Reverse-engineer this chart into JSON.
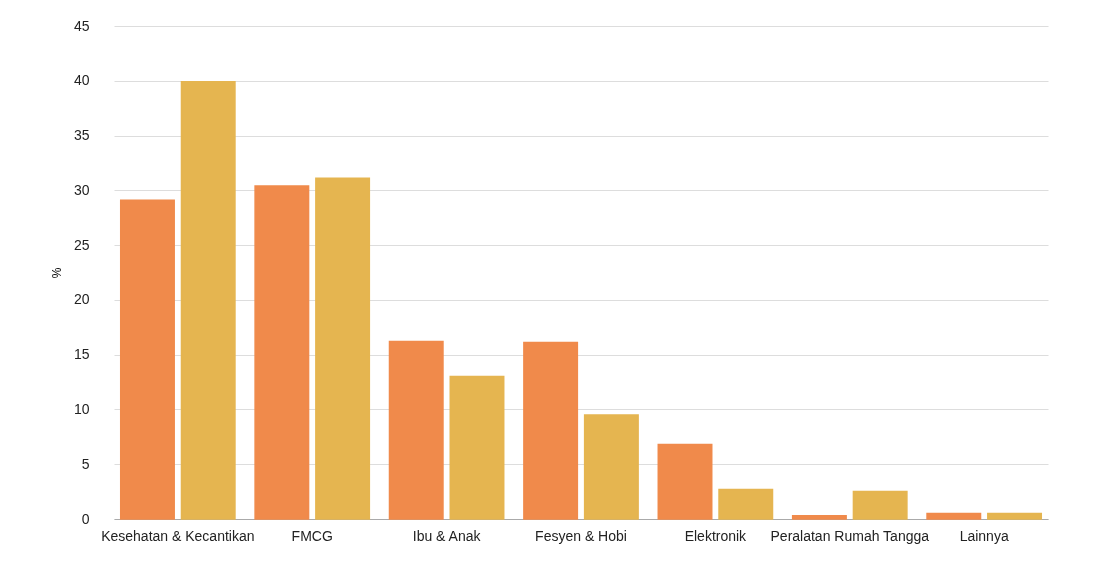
{
  "chart_data": {
    "type": "bar",
    "ylabel": "%",
    "categories": [
      "Kesehatan & Kecantikan",
      "FMCG",
      "Ibu & Anak",
      "Fesyen & Hobi",
      "Elektronik",
      "Peralatan Rumah Tangga",
      "Lainnya"
    ],
    "series": [
      {
        "color": "#f08a4b",
        "values": [
          29.1,
          30.4,
          16.2,
          16.1,
          6.8,
          0.3,
          0.5
        ]
      },
      {
        "color": "#e5b550",
        "values": [
          39.9,
          31.1,
          13.0,
          9.5,
          2.7,
          2.5,
          0.5
        ]
      }
    ],
    "ylim": [
      0,
      45
    ],
    "yticks": [
      0,
      5,
      10,
      15,
      20,
      25,
      30,
      35,
      40,
      45
    ],
    "grid": "y",
    "legend": false
  }
}
